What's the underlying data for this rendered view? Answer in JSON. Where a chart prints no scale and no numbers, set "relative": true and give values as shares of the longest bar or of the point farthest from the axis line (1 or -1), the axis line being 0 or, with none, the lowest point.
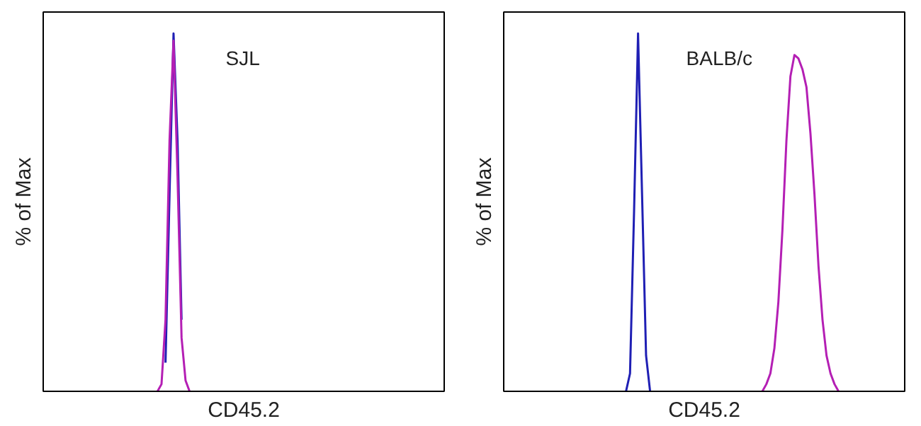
{
  "chart_data": [
    {
      "type": "line",
      "relative": true,
      "xlabel": "CD45.2",
      "ylabel": "% of Max",
      "annotations": [
        "SJL"
      ],
      "marker": "none",
      "line_style": "solid",
      "categories": [
        null,
        null,
        null,
        null,
        null,
        null,
        null,
        null,
        null,
        null,
        null,
        null,
        null,
        null,
        null,
        null,
        null,
        null,
        null,
        null,
        null,
        null,
        null,
        null,
        null,
        null,
        null,
        null,
        null,
        null,
        null,
        null,
        null,
        null,
        null,
        null,
        null,
        null,
        null,
        null,
        null,
        null,
        null,
        null,
        null,
        null,
        null,
        null,
        null,
        null,
        null,
        null,
        null,
        null,
        null,
        null,
        null,
        null,
        null,
        null,
        null,
        null,
        null,
        null,
        null,
        null,
        null,
        null,
        null,
        null,
        null,
        null,
        null,
        null,
        null,
        null,
        null,
        null,
        null,
        null,
        null,
        null,
        null,
        null,
        null,
        null,
        null,
        null,
        null,
        null,
        null,
        null,
        null,
        null,
        null,
        null,
        null,
        null,
        null,
        null
      ],
      "series": [
        {
          "color": "#1f1fb4",
          "values": [
            null,
            null,
            null,
            null,
            null,
            null,
            null,
            null,
            null,
            null,
            null,
            null,
            null,
            null,
            null,
            null,
            null,
            null,
            null,
            null,
            null,
            null,
            null,
            null,
            null,
            null,
            null,
            null,
            null,
            null,
            0.08,
            0.55,
            1.0,
            0.7,
            0.2,
            null,
            null,
            null,
            null,
            null,
            null,
            null,
            null,
            null,
            null,
            null,
            null,
            null,
            null,
            null,
            null,
            null,
            null,
            null,
            null,
            null,
            null,
            null,
            null,
            null,
            null,
            null,
            null,
            null,
            null,
            null,
            null,
            null,
            null,
            null,
            null,
            null,
            null,
            null,
            null,
            null,
            null,
            null,
            null,
            null,
            null,
            null,
            null,
            null,
            null,
            null,
            null,
            null,
            null,
            null,
            null,
            null,
            null,
            null,
            null,
            null,
            null,
            null,
            null,
            null
          ]
        },
        {
          "color": "#b41fb4",
          "values": [
            null,
            null,
            null,
            null,
            null,
            null,
            null,
            null,
            null,
            null,
            null,
            null,
            null,
            null,
            null,
            null,
            null,
            null,
            null,
            null,
            null,
            null,
            null,
            null,
            null,
            null,
            null,
            null,
            0,
            0.02,
            0.2,
            0.7,
            0.98,
            0.6,
            0.15,
            0.03,
            0,
            null,
            null,
            null,
            null,
            null,
            null,
            null,
            null,
            null,
            null,
            null,
            null,
            null,
            null,
            null,
            null,
            null,
            null,
            null,
            null,
            null,
            null,
            null,
            null,
            null,
            null,
            null,
            null,
            null,
            null,
            null,
            null,
            null,
            null,
            null,
            null,
            null,
            null,
            null,
            null,
            null,
            null,
            null,
            null,
            null,
            null,
            null,
            null,
            null,
            null,
            null,
            null,
            null,
            null,
            null,
            null,
            null,
            null,
            null,
            null,
            null,
            null,
            null
          ]
        }
      ]
    },
    {
      "type": "line",
      "relative": true,
      "xlabel": "CD45.2",
      "ylabel": "% of Max",
      "annotations": [
        "BALB/c"
      ],
      "marker": "none",
      "line_style": "solid",
      "categories": [
        null,
        null,
        null,
        null,
        null,
        null,
        null,
        null,
        null,
        null,
        null,
        null,
        null,
        null,
        null,
        null,
        null,
        null,
        null,
        null,
        null,
        null,
        null,
        null,
        null,
        null,
        null,
        null,
        null,
        null,
        null,
        null,
        null,
        null,
        null,
        null,
        null,
        null,
        null,
        null,
        null,
        null,
        null,
        null,
        null,
        null,
        null,
        null,
        null,
        null,
        null,
        null,
        null,
        null,
        null,
        null,
        null,
        null,
        null,
        null,
        null,
        null,
        null,
        null,
        null,
        null,
        null,
        null,
        null,
        null,
        null,
        null,
        null,
        null,
        null,
        null,
        null,
        null,
        null,
        null,
        null,
        null,
        null,
        null,
        null,
        null,
        null,
        null,
        null,
        null,
        null,
        null,
        null,
        null,
        null,
        null,
        null,
        null,
        null,
        null
      ],
      "series": [
        {
          "color": "#1f1fb4",
          "values": [
            null,
            null,
            null,
            null,
            null,
            null,
            null,
            null,
            null,
            null,
            null,
            null,
            null,
            null,
            null,
            null,
            null,
            null,
            null,
            null,
            null,
            null,
            null,
            null,
            null,
            null,
            null,
            null,
            null,
            null,
            0,
            0.05,
            0.5,
            1.0,
            0.55,
            0.1,
            0,
            null,
            null,
            null,
            null,
            null,
            null,
            null,
            null,
            null,
            null,
            null,
            null,
            null,
            null,
            null,
            null,
            null,
            null,
            null,
            null,
            null,
            null,
            null,
            null,
            null,
            null,
            null,
            null,
            null,
            null,
            null,
            null,
            null,
            null,
            null,
            null,
            null,
            null,
            null,
            null,
            null,
            null,
            null,
            null,
            null,
            null,
            null,
            null,
            null,
            null,
            null,
            null,
            null,
            null,
            null,
            null,
            null,
            null,
            null,
            null,
            null,
            null,
            null
          ]
        },
        {
          "color": "#b41fb4",
          "values": [
            null,
            null,
            null,
            null,
            null,
            null,
            null,
            null,
            null,
            null,
            null,
            null,
            null,
            null,
            null,
            null,
            null,
            null,
            null,
            null,
            null,
            null,
            null,
            null,
            null,
            null,
            null,
            null,
            null,
            null,
            null,
            null,
            null,
            null,
            null,
            null,
            null,
            null,
            null,
            null,
            null,
            null,
            null,
            null,
            null,
            null,
            null,
            null,
            null,
            null,
            null,
            null,
            null,
            null,
            null,
            null,
            null,
            null,
            null,
            null,
            null,
            null,
            null,
            null,
            0,
            0.02,
            0.05,
            0.12,
            0.25,
            0.45,
            0.7,
            0.88,
            0.94,
            0.93,
            0.9,
            0.85,
            0.72,
            0.55,
            0.35,
            0.2,
            0.1,
            0.05,
            0.02,
            0,
            null,
            null,
            null,
            null,
            null,
            null,
            null,
            null,
            null,
            null,
            null,
            null,
            null,
            null,
            null,
            null
          ]
        }
      ]
    }
  ]
}
